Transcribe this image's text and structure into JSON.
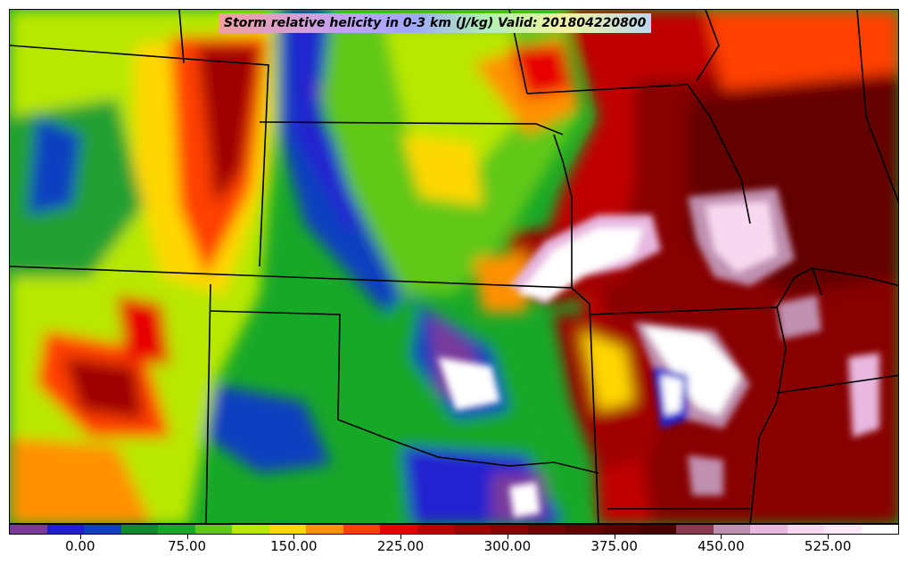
{
  "title": "Storm relative helicity in 0-3 km (J/kg) Valid: 201804220800",
  "colorbar": {
    "colors": [
      "#7a3a9a",
      "#2020d0",
      "#1040c0",
      "#108a30",
      "#18a828",
      "#60c818",
      "#b8e800",
      "#ffd700",
      "#ff9000",
      "#ff4000",
      "#e80000",
      "#c00000",
      "#a00000",
      "#880000",
      "#740000",
      "#640000",
      "#560000",
      "#480000",
      "#8a3a50",
      "#c090b0",
      "#e8b8e0",
      "#f8d8f0",
      "#fce8f8",
      "#ffffff"
    ],
    "tick_labels": [
      "0.00",
      "75.00",
      "150.00",
      "225.00",
      "300.00",
      "375.00",
      "450.00",
      "525.00"
    ],
    "tick_values": [
      0,
      75,
      150,
      225,
      300,
      375,
      450,
      525
    ],
    "vmin": -50,
    "vmax": 575
  }
}
